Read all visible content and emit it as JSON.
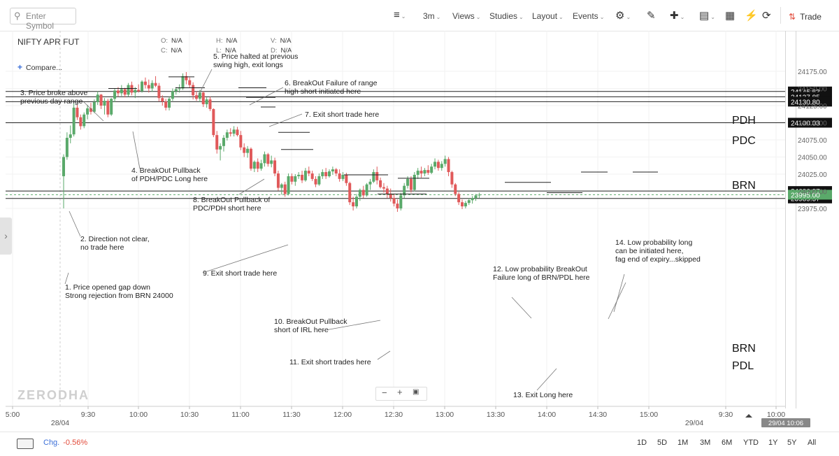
{
  "toolbar": {
    "search_placeholder": "Enter Symbol",
    "interval": "3m",
    "views": "Views",
    "studies": "Studies",
    "layout": "Layout",
    "events": "Events",
    "trade": "Trade"
  },
  "header": {
    "symbol": "NIFTY APR FUT",
    "compare": "Compare...",
    "ohlc": [
      {
        "k": "O:",
        "v": "N/A"
      },
      {
        "k": "H:",
        "v": "N/A"
      },
      {
        "k": "V:",
        "v": "N/A"
      },
      {
        "k": "C:",
        "v": "N/A"
      },
      {
        "k": "L:",
        "v": "N/A"
      },
      {
        "k": "D:",
        "v": "N/A"
      }
    ]
  },
  "watermark": "ZERODHA",
  "bottom": {
    "chg_label": "Chg.",
    "chg_value": "-0.56%",
    "ranges": [
      "1D",
      "5D",
      "1M",
      "3M",
      "6M",
      "YTD",
      "1Y",
      "5Y",
      "All"
    ]
  },
  "colors": {
    "up": "#5aa96a",
    "down": "#e0595a",
    "text": "#333333",
    "accent": "#3b6fd8"
  },
  "chart_data": {
    "type": "candlestick",
    "x_tick_labels": [
      "5:00",
      "9:30",
      "10:00",
      "10:30",
      "11:00",
      "11:30",
      "12:00",
      "12:30",
      "13:00",
      "13:30",
      "14:00",
      "14:30",
      "15:00",
      "9:30",
      "10:00"
    ],
    "date_labels": [
      "28/04",
      "29/04"
    ],
    "crosshair_date_label": "29/04 10:06",
    "y_ticks": [
      24175,
      24150,
      24125,
      24100,
      24075,
      24050,
      24025,
      24000,
      23975
    ],
    "y_tick_labels": [
      "24175.00",
      "24150.00",
      "24125.00",
      "24100.00",
      "24075.00",
      "24050.00",
      "24025.00",
      "24000.00",
      "23975.00"
    ],
    "ylim": [
      23969,
      24196
    ],
    "level_lines": [
      {
        "name": "PDH",
        "value": 24145.63,
        "label": "24145.63"
      },
      {
        "name": "",
        "value": 24137.85,
        "label": "24137.85"
      },
      {
        "name": "PDC",
        "value": 24130.8,
        "label": "24130.80"
      },
      {
        "name": "BRN",
        "value": 24100.03,
        "label": "24100.03"
      },
      {
        "name": "BRN",
        "value": 24000.37,
        "label": "24000.37"
      },
      {
        "name": "PDL",
        "value": 23989.57,
        "label": "23989.57"
      }
    ],
    "last_price": {
      "value": 23995.0,
      "label": "23995.00"
    },
    "candles": [
      {
        "t": "09:15",
        "o": 24022,
        "h": 24054,
        "l": 23985,
        "c": 24050
      },
      {
        "t": "09:18",
        "o": 24050,
        "h": 24086,
        "l": 24046,
        "c": 24078
      },
      {
        "t": "09:21",
        "o": 24078,
        "h": 24096,
        "l": 24070,
        "c": 24083
      },
      {
        "t": "09:24",
        "o": 24083,
        "h": 24128,
        "l": 24080,
        "c": 24122
      },
      {
        "t": "09:27",
        "o": 24122,
        "h": 24126,
        "l": 24104,
        "c": 24108
      },
      {
        "t": "09:30",
        "o": 24108,
        "h": 24112,
        "l": 24090,
        "c": 24095
      },
      {
        "t": "09:33",
        "o": 24095,
        "h": 24115,
        "l": 24092,
        "c": 24112
      },
      {
        "t": "09:36",
        "o": 24112,
        "h": 24126,
        "l": 24105,
        "c": 24121
      },
      {
        "t": "09:39",
        "o": 24121,
        "h": 24129,
        "l": 24112,
        "c": 24116
      },
      {
        "t": "09:42",
        "o": 24116,
        "h": 24134,
        "l": 24114,
        "c": 24130
      },
      {
        "t": "09:45",
        "o": 24130,
        "h": 24146,
        "l": 24126,
        "c": 24141
      },
      {
        "t": "09:48",
        "o": 24141,
        "h": 24142,
        "l": 24120,
        "c": 24125
      },
      {
        "t": "09:51",
        "o": 24125,
        "h": 24136,
        "l": 24112,
        "c": 24132
      },
      {
        "t": "09:54",
        "o": 24132,
        "h": 24135,
        "l": 24108,
        "c": 24112
      },
      {
        "t": "09:57",
        "o": 24112,
        "h": 24136,
        "l": 24110,
        "c": 24135
      },
      {
        "t": "10:00",
        "o": 24135,
        "h": 24150,
        "l": 24130,
        "c": 24147
      },
      {
        "t": "10:03",
        "o": 24147,
        "h": 24152,
        "l": 24138,
        "c": 24143
      },
      {
        "t": "10:06",
        "o": 24143,
        "h": 24155,
        "l": 24139,
        "c": 24149
      },
      {
        "t": "10:09",
        "o": 24149,
        "h": 24151,
        "l": 24137,
        "c": 24141
      },
      {
        "t": "10:12",
        "o": 24141,
        "h": 24158,
        "l": 24138,
        "c": 24155
      },
      {
        "t": "10:15",
        "o": 24155,
        "h": 24160,
        "l": 24140,
        "c": 24144
      },
      {
        "t": "10:18",
        "o": 24144,
        "h": 24152,
        "l": 24136,
        "c": 24148
      },
      {
        "t": "10:21",
        "o": 24148,
        "h": 24156,
        "l": 24144,
        "c": 24146
      },
      {
        "t": "10:24",
        "o": 24146,
        "h": 24162,
        "l": 24144,
        "c": 24160
      },
      {
        "t": "10:27",
        "o": 24160,
        "h": 24166,
        "l": 24150,
        "c": 24155
      },
      {
        "t": "10:30",
        "o": 24155,
        "h": 24163,
        "l": 24144,
        "c": 24150
      },
      {
        "t": "10:33",
        "o": 24150,
        "h": 24162,
        "l": 24145,
        "c": 24158
      },
      {
        "t": "10:36",
        "o": 24158,
        "h": 24168,
        "l": 24152,
        "c": 24154
      },
      {
        "t": "10:39",
        "o": 24154,
        "h": 24158,
        "l": 24131,
        "c": 24136
      },
      {
        "t": "10:42",
        "o": 24136,
        "h": 24140,
        "l": 24125,
        "c": 24131
      },
      {
        "t": "10:45",
        "o": 24131,
        "h": 24135,
        "l": 24118,
        "c": 24122
      },
      {
        "t": "10:48",
        "o": 24122,
        "h": 24138,
        "l": 24118,
        "c": 24135
      },
      {
        "t": "10:51",
        "o": 24135,
        "h": 24150,
        "l": 24132,
        "c": 24146
      },
      {
        "t": "10:54",
        "o": 24146,
        "h": 24152,
        "l": 24141,
        "c": 24149
      },
      {
        "t": "10:57",
        "o": 24149,
        "h": 24156,
        "l": 24144,
        "c": 24150
      },
      {
        "t": "11:00",
        "o": 24150,
        "h": 24172,
        "l": 24148,
        "c": 24168
      },
      {
        "t": "11:03",
        "o": 24168,
        "h": 24174,
        "l": 24156,
        "c": 24162
      },
      {
        "t": "11:06",
        "o": 24162,
        "h": 24166,
        "l": 24151,
        "c": 24155
      },
      {
        "t": "11:09",
        "o": 24155,
        "h": 24159,
        "l": 24134,
        "c": 24140
      },
      {
        "t": "11:12",
        "o": 24140,
        "h": 24146,
        "l": 24132,
        "c": 24135
      },
      {
        "t": "11:15",
        "o": 24135,
        "h": 24148,
        "l": 24130,
        "c": 24144
      },
      {
        "t": "11:18",
        "o": 24144,
        "h": 24146,
        "l": 24123,
        "c": 24127
      },
      {
        "t": "11:21",
        "o": 24127,
        "h": 24137,
        "l": 24122,
        "c": 24134
      },
      {
        "t": "11:24",
        "o": 24134,
        "h": 24138,
        "l": 24117,
        "c": 24120
      },
      {
        "t": "11:27",
        "o": 24120,
        "h": 24121,
        "l": 24079,
        "c": 24082
      },
      {
        "t": "11:30",
        "o": 24082,
        "h": 24088,
        "l": 24055,
        "c": 24061
      },
      {
        "t": "11:33",
        "o": 24061,
        "h": 24070,
        "l": 24045,
        "c": 24066
      },
      {
        "t": "11:36",
        "o": 24066,
        "h": 24082,
        "l": 24058,
        "c": 24078
      },
      {
        "t": "11:39",
        "o": 24078,
        "h": 24090,
        "l": 24074,
        "c": 24086
      },
      {
        "t": "11:42",
        "o": 24086,
        "h": 24092,
        "l": 24080,
        "c": 24084
      },
      {
        "t": "11:45",
        "o": 24084,
        "h": 24095,
        "l": 24080,
        "c": 24090
      },
      {
        "t": "11:48",
        "o": 24090,
        "h": 24094,
        "l": 24080,
        "c": 24082
      },
      {
        "t": "11:51",
        "o": 24082,
        "h": 24088,
        "l": 24060,
        "c": 24064
      },
      {
        "t": "11:54",
        "o": 24064,
        "h": 24070,
        "l": 24050,
        "c": 24056
      },
      {
        "t": "11:57",
        "o": 24056,
        "h": 24066,
        "l": 24049,
        "c": 24062
      },
      {
        "t": "12:00",
        "o": 24062,
        "h": 24064,
        "l": 24030,
        "c": 24033
      },
      {
        "t": "12:03",
        "o": 24033,
        "h": 24045,
        "l": 24028,
        "c": 24043
      },
      {
        "t": "12:06",
        "o": 24043,
        "h": 24048,
        "l": 24028,
        "c": 24033
      },
      {
        "t": "12:09",
        "o": 24033,
        "h": 24046,
        "l": 24030,
        "c": 24041
      },
      {
        "t": "12:12",
        "o": 24041,
        "h": 24058,
        "l": 24036,
        "c": 24054
      },
      {
        "t": "12:15",
        "o": 24054,
        "h": 24056,
        "l": 24036,
        "c": 24040
      },
      {
        "t": "12:18",
        "o": 24040,
        "h": 24052,
        "l": 24035,
        "c": 24045
      },
      {
        "t": "12:21",
        "o": 24045,
        "h": 24049,
        "l": 24022,
        "c": 24026
      },
      {
        "t": "12:24",
        "o": 24026,
        "h": 24030,
        "l": 24001,
        "c": 24005
      },
      {
        "t": "12:27",
        "o": 24005,
        "h": 24012,
        "l": 23995,
        "c": 24010
      },
      {
        "t": "12:30",
        "o": 24010,
        "h": 24014,
        "l": 23992,
        "c": 23996
      },
      {
        "t": "12:33",
        "o": 23996,
        "h": 24026,
        "l": 23994,
        "c": 24022
      },
      {
        "t": "12:36",
        "o": 24022,
        "h": 24026,
        "l": 24010,
        "c": 24014
      },
      {
        "t": "12:39",
        "o": 24014,
        "h": 24025,
        "l": 24008,
        "c": 24022
      },
      {
        "t": "12:42",
        "o": 24022,
        "h": 24028,
        "l": 24018,
        "c": 24024
      },
      {
        "t": "12:45",
        "o": 24024,
        "h": 24030,
        "l": 24012,
        "c": 24016
      },
      {
        "t": "12:48",
        "o": 24016,
        "h": 24034,
        "l": 24014,
        "c": 24030
      },
      {
        "t": "12:51",
        "o": 24030,
        "h": 24036,
        "l": 24022,
        "c": 24026
      },
      {
        "t": "12:54",
        "o": 24026,
        "h": 24030,
        "l": 24015,
        "c": 24018
      },
      {
        "t": "12:57",
        "o": 24018,
        "h": 24022,
        "l": 24006,
        "c": 24010
      },
      {
        "t": "13:00",
        "o": 24010,
        "h": 24026,
        "l": 24008,
        "c": 24022
      },
      {
        "t": "13:03",
        "o": 24022,
        "h": 24032,
        "l": 24018,
        "c": 24028
      },
      {
        "t": "13:06",
        "o": 24028,
        "h": 24034,
        "l": 24018,
        "c": 24022
      },
      {
        "t": "13:09",
        "o": 24022,
        "h": 24032,
        "l": 24020,
        "c": 24029
      },
      {
        "t": "13:12",
        "o": 24029,
        "h": 24036,
        "l": 24024,
        "c": 24032
      },
      {
        "t": "13:15",
        "o": 24032,
        "h": 24034,
        "l": 24022,
        "c": 24026
      },
      {
        "t": "13:18",
        "o": 24026,
        "h": 24032,
        "l": 24014,
        "c": 24018
      },
      {
        "t": "13:21",
        "o": 24018,
        "h": 24028,
        "l": 24015,
        "c": 24024
      },
      {
        "t": "13:24",
        "o": 24024,
        "h": 24027,
        "l": 24008,
        "c": 24012
      },
      {
        "t": "13:27",
        "o": 24012,
        "h": 24014,
        "l": 23980,
        "c": 23984
      },
      {
        "t": "13:30",
        "o": 23984,
        "h": 23992,
        "l": 23972,
        "c": 23978
      },
      {
        "t": "13:33",
        "o": 23978,
        "h": 23996,
        "l": 23975,
        "c": 23992
      },
      {
        "t": "13:36",
        "o": 23992,
        "h": 24004,
        "l": 23986,
        "c": 24002
      },
      {
        "t": "13:39",
        "o": 24002,
        "h": 24008,
        "l": 23990,
        "c": 23994
      },
      {
        "t": "13:42",
        "o": 23994,
        "h": 24012,
        "l": 23992,
        "c": 24010
      },
      {
        "t": "13:45",
        "o": 24010,
        "h": 24018,
        "l": 24002,
        "c": 24014
      },
      {
        "t": "13:48",
        "o": 24014,
        "h": 24032,
        "l": 24012,
        "c": 24028
      },
      {
        "t": "13:51",
        "o": 24028,
        "h": 24036,
        "l": 24010,
        "c": 24016
      },
      {
        "t": "13:54",
        "o": 24016,
        "h": 24020,
        "l": 24004,
        "c": 24006
      },
      {
        "t": "13:57",
        "o": 24006,
        "h": 24012,
        "l": 23998,
        "c": 24004
      },
      {
        "t": "14:00",
        "o": 24004,
        "h": 24008,
        "l": 23990,
        "c": 23996
      },
      {
        "t": "14:03",
        "o": 23996,
        "h": 24004,
        "l": 23985,
        "c": 23990
      },
      {
        "t": "14:06",
        "o": 23990,
        "h": 23996,
        "l": 23978,
        "c": 23982
      },
      {
        "t": "14:09",
        "o": 23982,
        "h": 23988,
        "l": 23970,
        "c": 23975
      },
      {
        "t": "14:12",
        "o": 23975,
        "h": 23998,
        "l": 23972,
        "c": 23994
      },
      {
        "t": "14:15",
        "o": 23994,
        "h": 24012,
        "l": 23990,
        "c": 24008
      },
      {
        "t": "14:18",
        "o": 24008,
        "h": 24022,
        "l": 24004,
        "c": 24018
      },
      {
        "t": "14:21",
        "o": 24018,
        "h": 24022,
        "l": 23998,
        "c": 24002
      },
      {
        "t": "14:24",
        "o": 24002,
        "h": 24028,
        "l": 24000,
        "c": 24024
      },
      {
        "t": "14:27",
        "o": 24024,
        "h": 24034,
        "l": 24018,
        "c": 24030
      },
      {
        "t": "14:30",
        "o": 24030,
        "h": 24036,
        "l": 24020,
        "c": 24026
      },
      {
        "t": "14:33",
        "o": 24026,
        "h": 24034,
        "l": 24022,
        "c": 24031
      },
      {
        "t": "14:36",
        "o": 24031,
        "h": 24038,
        "l": 24024,
        "c": 24027
      },
      {
        "t": "14:39",
        "o": 24027,
        "h": 24040,
        "l": 24025,
        "c": 24036
      },
      {
        "t": "14:42",
        "o": 24036,
        "h": 24048,
        "l": 24032,
        "c": 24043
      },
      {
        "t": "14:45",
        "o": 24043,
        "h": 24046,
        "l": 24030,
        "c": 24034
      },
      {
        "t": "14:48",
        "o": 24034,
        "h": 24044,
        "l": 24030,
        "c": 24040
      },
      {
        "t": "14:51",
        "o": 24040,
        "h": 24052,
        "l": 24036,
        "c": 24047
      },
      {
        "t": "14:54",
        "o": 24047,
        "h": 24050,
        "l": 24022,
        "c": 24028
      },
      {
        "t": "14:57",
        "o": 24028,
        "h": 24030,
        "l": 24005,
        "c": 24010
      },
      {
        "t": "15:00",
        "o": 24010,
        "h": 24012,
        "l": 23993,
        "c": 23996
      },
      {
        "t": "15:03",
        "o": 23996,
        "h": 23999,
        "l": 23980,
        "c": 23984
      },
      {
        "t": "15:06",
        "o": 23984,
        "h": 23988,
        "l": 23974,
        "c": 23978
      },
      {
        "t": "15:09",
        "o": 23978,
        "h": 23986,
        "l": 23975,
        "c": 23983
      },
      {
        "t": "15:12",
        "o": 23983,
        "h": 23990,
        "l": 23980,
        "c": 23987
      },
      {
        "t": "15:15",
        "o": 23987,
        "h": 23993,
        "l": 23982,
        "c": 23990
      },
      {
        "t": "15:18",
        "o": 23990,
        "h": 23996,
        "l": 23986,
        "c": 23994
      },
      {
        "t": "15:21",
        "o": 23994,
        "h": 23998,
        "l": 23990,
        "c": 23995
      }
    ],
    "annotations": [
      {
        "lines": [
          "1. Price opened gap down",
          "Strong rejection from  BRN 24000"
        ]
      },
      {
        "lines": [
          "2. Direction not clear,",
          "no trade here"
        ]
      },
      {
        "lines": [
          "3. Price broke above",
          "previous day range"
        ]
      },
      {
        "lines": [
          "4. BreakOut Pullback",
          "of PDH/PDC Long here"
        ]
      },
      {
        "lines": [
          "5. Price halted at previous",
          "swing high, exit longs"
        ]
      },
      {
        "lines": [
          "6. BreakOut Failure of range",
          "high short initiated here"
        ]
      },
      {
        "lines": [
          "7. Exit short trade here"
        ]
      },
      {
        "lines": [
          "8. BreakOut Pullback of",
          "PDC/PDH short here"
        ]
      },
      {
        "lines": [
          "9. Exit short trade here"
        ]
      },
      {
        "lines": [
          "10. BreakOut Pullback",
          "short of IRL here"
        ]
      },
      {
        "lines": [
          "11. Exit short trades here"
        ]
      },
      {
        "lines": [
          "12. Low probability BreakOut",
          "Failure long of BRN/PDL here"
        ]
      },
      {
        "lines": [
          "13. Exit Long here"
        ]
      },
      {
        "lines": [
          "14. Low probability long",
          "can be initiated here,",
          "fag end of expiry...skipped"
        ]
      }
    ]
  }
}
